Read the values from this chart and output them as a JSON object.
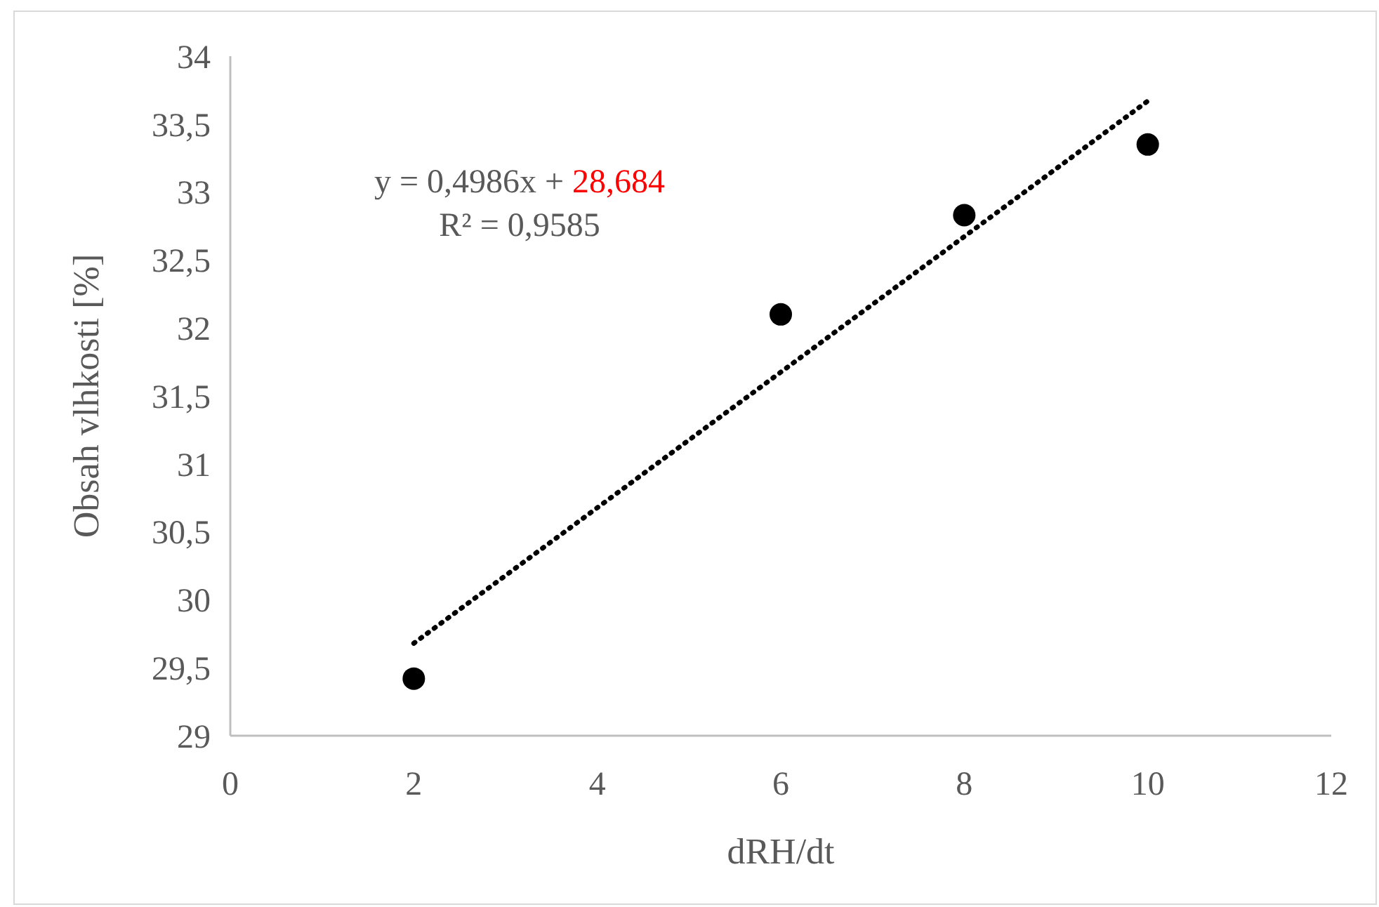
{
  "chart_data": {
    "type": "scatter",
    "xlabel": "dRH/dt",
    "ylabel": "Obsah vlhkosti [%]",
    "x": [
      2,
      6,
      8,
      10
    ],
    "series": [
      {
        "color": "#000000",
        "values": [
          29.42,
          32.1,
          32.83,
          33.35
        ],
        "marker": "circle"
      },
      {
        "type": "line",
        "color": "#000000",
        "x": [
          2,
          10
        ],
        "values": [
          29.68,
          33.67
        ],
        "line_style": "dotted"
      }
    ],
    "xlim": [
      0,
      12
    ],
    "xticks": [
      0,
      2,
      4,
      6,
      8,
      10,
      12
    ],
    "ylim": [
      29,
      34
    ],
    "yticks": [
      29,
      {
        "value": 29.5,
        "label": "29,5"
      },
      30,
      {
        "value": 30.5,
        "label": "30,5"
      },
      31,
      {
        "value": 31.5,
        "label": "31,5"
      },
      32,
      {
        "value": 32.5,
        "label": "32,5"
      },
      33,
      {
        "value": 33.5,
        "label": "33,5"
      },
      34
    ],
    "grid": false,
    "annotations": [
      "y = 0,4986x +",
      "28,684",
      "R² = 0,9585"
    ]
  }
}
